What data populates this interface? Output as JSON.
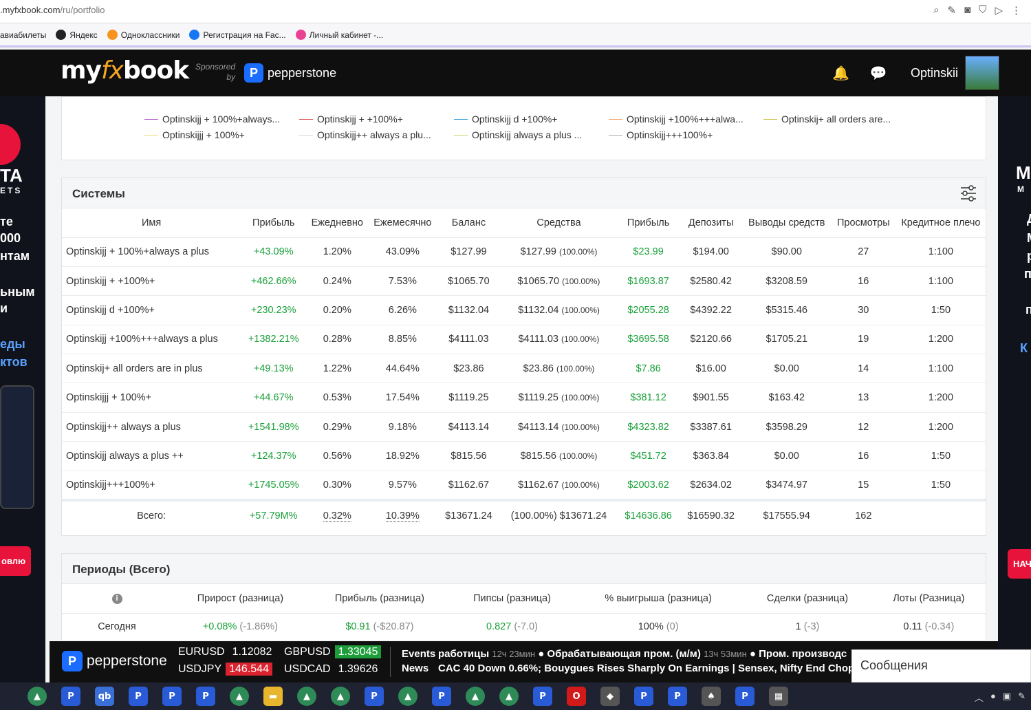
{
  "browser": {
    "url_host": ".myfxbook.com",
    "url_path": "/ru/portfolio",
    "bookmarks": [
      {
        "label": "авиабилеты",
        "color": "#bbb"
      },
      {
        "label": "Яндекс",
        "color": "#222"
      },
      {
        "label": "Одноклассники",
        "color": "#f7931e"
      },
      {
        "label": "Регистрация на Fac...",
        "color": "#1877f2"
      },
      {
        "label": "Личный кабинет -...",
        "color": "#e84393"
      }
    ]
  },
  "header": {
    "logo_a": "my",
    "logo_b": "fx",
    "logo_c": "book",
    "sponsored_1": "Sponsored",
    "sponsored_2": "by",
    "sponsor": "pepperstone",
    "username": "Optinskii"
  },
  "ads": {
    "left_lines": [
      "TA",
      "ETS",
      "те",
      "000",
      "нтам",
      "ьным",
      "и",
      "еды",
      "ктов"
    ],
    "left_button": "овлю",
    "right_lines": [
      "M",
      "M",
      "Д",
      "М",
      "р",
      "пс",
      "п",
      "К"
    ],
    "right_button": "НАЧ"
  },
  "legend": [
    {
      "label": "Optinskijj + 100%+always...",
      "color": "#b05ec9"
    },
    {
      "label": "Optinskijj + +100%+",
      "color": "#e05555"
    },
    {
      "label": "Optinskijj d +100%+",
      "color": "#3a9ad9"
    },
    {
      "label": "Optinskijj +100%+++alwa...",
      "color": "#f2a46b"
    },
    {
      "label": "Optinskij+ all orders are...",
      "color": "#c9c24a"
    },
    {
      "label": "Optinskijjj + 100%+",
      "color": "#f2dd7a"
    },
    {
      "label": "Optinskijj++ always a plu...",
      "color": "#d8d8d8"
    },
    {
      "label": "Optinskijj always a plus ...",
      "color": "#c8d86a"
    },
    {
      "label": "Optinskijj+++100%+",
      "color": "#aaaaaa"
    }
  ],
  "systems": {
    "title": "Системы",
    "columns": [
      "Имя",
      "Прибыль",
      "Ежедневно",
      "Ежемесячно",
      "Баланс",
      "Средства",
      "Прибыль",
      "Депозиты",
      "Выводы средств",
      "Просмотры",
      "Кредитное плечо"
    ],
    "rows": [
      {
        "name": "Optinskijj + 100%+always a plus",
        "gain": "+43.09%",
        "daily": "1.20%",
        "monthly": "43.09%",
        "balance": "$127.99",
        "equity": "$127.99",
        "equity_pct": "(100.00%)",
        "profit": "$23.99",
        "deposits": "$194.00",
        "withdrawals": "$90.00",
        "views": "27",
        "leverage": "1:100"
      },
      {
        "name": "Optinskijj + +100%+",
        "gain": "+462.66%",
        "daily": "0.24%",
        "monthly": "7.53%",
        "balance": "$1065.70",
        "equity": "$1065.70",
        "equity_pct": "(100.00%)",
        "profit": "$1693.87",
        "deposits": "$2580.42",
        "withdrawals": "$3208.59",
        "views": "16",
        "leverage": "1:100"
      },
      {
        "name": "Optinskijj d +100%+",
        "gain": "+230.23%",
        "daily": "0.20%",
        "monthly": "6.26%",
        "balance": "$1132.04",
        "equity": "$1132.04",
        "equity_pct": "(100.00%)",
        "profit": "$2055.28",
        "deposits": "$4392.22",
        "withdrawals": "$5315.46",
        "views": "30",
        "leverage": "1:50"
      },
      {
        "name": "Optinskijj +100%+++always a plus",
        "gain": "+1382.21%",
        "daily": "0.28%",
        "monthly": "8.85%",
        "balance": "$4111.03",
        "equity": "$4111.03",
        "equity_pct": "(100.00%)",
        "profit": "$3695.58",
        "deposits": "$2120.66",
        "withdrawals": "$1705.21",
        "views": "19",
        "leverage": "1:200"
      },
      {
        "name": "Optinskij+ all orders are in plus",
        "gain": "+49.13%",
        "daily": "1.22%",
        "monthly": "44.64%",
        "balance": "$23.86",
        "equity": "$23.86",
        "equity_pct": "(100.00%)",
        "profit": "$7.86",
        "deposits": "$16.00",
        "withdrawals": "$0.00",
        "views": "14",
        "leverage": "1:100"
      },
      {
        "name": "Optinskijjj + 100%+",
        "gain": "+44.67%",
        "daily": "0.53%",
        "monthly": "17.54%",
        "balance": "$1119.25",
        "equity": "$1119.25",
        "equity_pct": "(100.00%)",
        "profit": "$381.12",
        "deposits": "$901.55",
        "withdrawals": "$163.42",
        "views": "13",
        "leverage": "1:200"
      },
      {
        "name": "Optinskijj++ always a plus",
        "gain": "+1541.98%",
        "daily": "0.29%",
        "monthly": "9.18%",
        "balance": "$4113.14",
        "equity": "$4113.14",
        "equity_pct": "(100.00%)",
        "profit": "$4323.82",
        "deposits": "$3387.61",
        "withdrawals": "$3598.29",
        "views": "12",
        "leverage": "1:200"
      },
      {
        "name": "Optinskijj always a plus ++",
        "gain": "+124.37%",
        "daily": "0.56%",
        "monthly": "18.92%",
        "balance": "$815.56",
        "equity": "$815.56",
        "equity_pct": "(100.00%)",
        "profit": "$451.72",
        "deposits": "$363.84",
        "withdrawals": "$0.00",
        "views": "16",
        "leverage": "1:50"
      },
      {
        "name": "Optinskijj+++100%+",
        "gain": "+1745.05%",
        "daily": "0.30%",
        "monthly": "9.57%",
        "balance": "$1162.67",
        "equity": "$1162.67",
        "equity_pct": "(100.00%)",
        "profit": "$2003.62",
        "deposits": "$2634.02",
        "withdrawals": "$3474.97",
        "views": "15",
        "leverage": "1:50"
      }
    ],
    "total": {
      "label": "Всего:",
      "gain": "+57.79M%",
      "daily": "0.32%",
      "monthly": "10.39%",
      "balance": "$13671.24",
      "equity": "(100.00%) $13671.24",
      "profit": "$14636.86",
      "deposits": "$16590.32",
      "withdrawals": "$17555.94",
      "views": "162"
    }
  },
  "periods": {
    "title": "Периоды (Всего)",
    "columns": [
      "Прирост (разница)",
      "Прибыль (разница)",
      "Пипсы (разница)",
      "% выигрыша (разница)",
      "Сделки (разница)",
      "Лоты (Разница)"
    ],
    "row": {
      "label": "Сегодня",
      "gain": "+0.08%",
      "gain_diff": "(-1.86%)",
      "profit": "$0.91",
      "profit_diff": "(-$20.87)",
      "pips": "0.827",
      "pips_diff": "(-7.0)",
      "win": "100%",
      "win_diff": "(0)",
      "trades": "1",
      "trades_diff": "(-3)",
      "lots": "0.11",
      "lots_diff": "(-0.34)"
    }
  },
  "ticker": {
    "brand": "pepperstone",
    "quotes": [
      {
        "sym": "EURUSD",
        "val": "1.12082",
        "bg": ""
      },
      {
        "sym": "GBPUSD",
        "val": "1.33045",
        "bg": "#1e9e3a"
      },
      {
        "sym": "USDJPY",
        "val": "146.544",
        "bg": "#d9232e"
      },
      {
        "sym": "USDCAD",
        "val": "1.39626",
        "bg": ""
      }
    ],
    "events_label": "Events",
    "news_label": "News",
    "events_text": "работицы",
    "events_time1": "12ч 23мин",
    "events_text2": "● Обрабатывающая пром. (м/м)",
    "events_time2": "13ч 53мин",
    "events_text3": "● Пром. производс",
    "news_text": "CAC 40 Down 0.66%; Bouygues Rises Sharply On Earnings   |   Sensex, Nifty End Choppy Ses"
  },
  "messages_label": "Сообщения"
}
